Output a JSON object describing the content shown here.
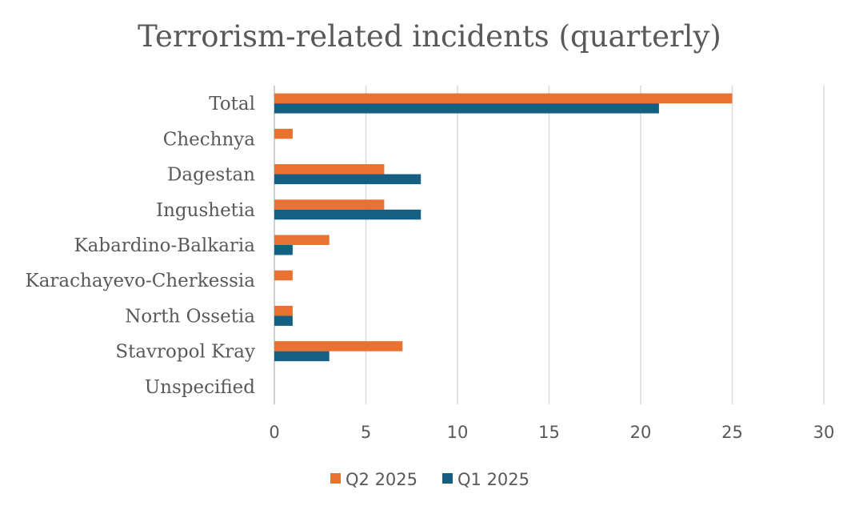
{
  "chart_data": {
    "type": "bar",
    "orientation": "horizontal",
    "title": "Terrorism-related incidents (quarterly)",
    "categories": [
      "Total",
      "Chechnya",
      "Dagestan",
      "Ingushetia",
      "Kabardino-Balkaria",
      "Karachayevo-Cherkessia",
      "North Ossetia",
      "Stavropol Kray",
      "Unspecified"
    ],
    "series": [
      {
        "name": "Q2 2025",
        "color": "#E97132",
        "values": [
          25,
          1,
          6,
          6,
          3,
          1,
          1,
          7,
          0
        ]
      },
      {
        "name": "Q1 2025",
        "color": "#156082",
        "values": [
          21,
          0,
          8,
          8,
          1,
          0,
          1,
          3,
          0
        ]
      }
    ],
    "xlim": [
      0,
      30
    ],
    "xticks": [
      "0",
      "5",
      "10",
      "15",
      "20",
      "25",
      "30"
    ],
    "grid": true,
    "legend_position": "bottom"
  }
}
